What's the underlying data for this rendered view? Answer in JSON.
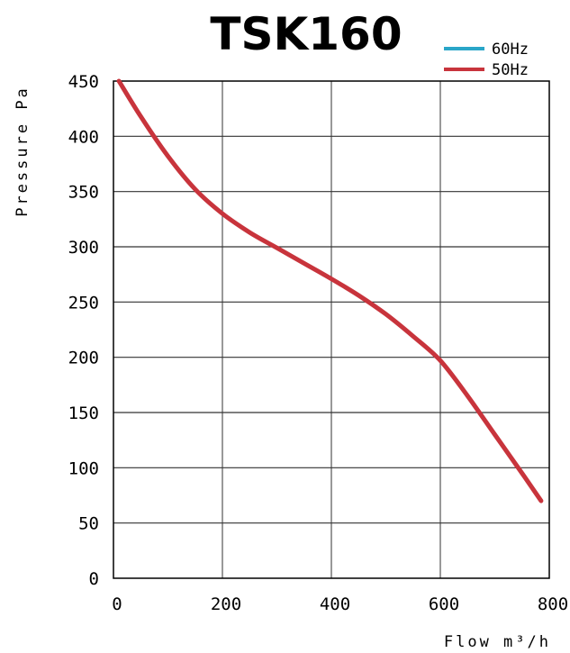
{
  "chart_data": {
    "type": "line",
    "title": "TSK160",
    "xlabel": "Flow m³/h",
    "ylabel": "Pressure Pa",
    "xlim": [
      0,
      800
    ],
    "ylim": [
      0,
      450
    ],
    "x_ticks": [
      0,
      200,
      400,
      600,
      800
    ],
    "y_ticks": [
      0,
      50,
      100,
      150,
      200,
      250,
      300,
      350,
      400,
      450
    ],
    "grid": true,
    "legend_position": "top-right",
    "series": [
      {
        "name": "60Hz",
        "color": "#2aa6c8",
        "x": [],
        "y": []
      },
      {
        "name": "50Hz",
        "color": "#c8343c",
        "x": [
          10,
          50,
          100,
          150,
          200,
          250,
          300,
          350,
          400,
          450,
          500,
          550,
          600,
          650,
          700,
          750,
          785
        ],
        "y": [
          450,
          418,
          382,
          352,
          330,
          313,
          299,
          285,
          271,
          256,
          239,
          219,
          197,
          165,
          130,
          95,
          70
        ]
      }
    ]
  }
}
